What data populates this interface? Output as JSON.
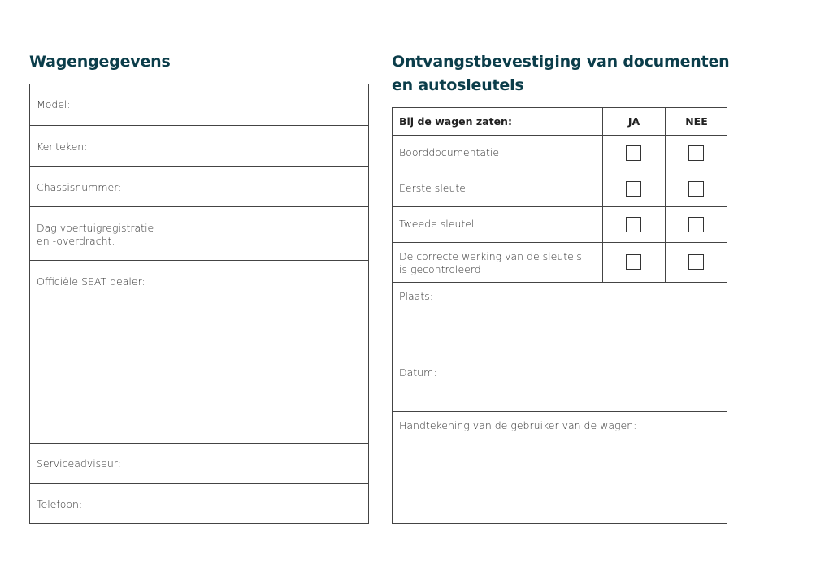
{
  "left": {
    "title": "Wagengegevens",
    "fields": [
      "Model:",
      "Kenteken:",
      "Chassisnummer:",
      "Dag voertuigregistratie\nen -overdracht:",
      "Officiële SEAT dealer:",
      "Serviceadviseur:",
      "Telefoon:"
    ]
  },
  "right": {
    "title": "Ontvangstbevestiging van documenten\nen autosleutels",
    "header": {
      "item": "Bij de wagen zaten:",
      "yes": "JA",
      "no": "NEE"
    },
    "items": [
      {
        "label": "Boorddocumentatie",
        "ja": false,
        "nee": false
      },
      {
        "label": "Eerste sleutel",
        "ja": false,
        "nee": false
      },
      {
        "label": "Tweede sleutel",
        "ja": false,
        "nee": false
      },
      {
        "label": "De correcte werking van de sleutels\nis gecontroleerd",
        "ja": false,
        "nee": false
      }
    ],
    "place_label": "Plaats:",
    "date_label": "Datum:",
    "signature_label": "Handtekening van de gebruiker van de wagen:"
  },
  "colors": {
    "title": "#0b3d4a",
    "border": "#444444"
  }
}
